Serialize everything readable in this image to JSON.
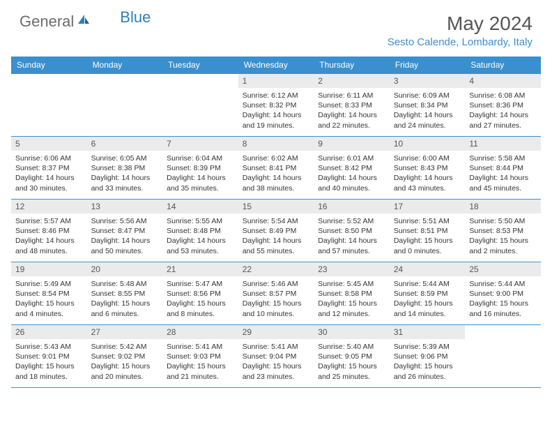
{
  "logo": {
    "general": "General",
    "blue": "Blue"
  },
  "header": {
    "month_title": "May 2024",
    "location": "Sesto Calende, Lombardy, Italy"
  },
  "colors": {
    "header_bg": "#3a8fce",
    "header_text": "#ffffff",
    "border": "#3a8fce",
    "daynum_bg": "#ebebeb",
    "body_text": "#333333",
    "title_text": "#555555",
    "logo_gray": "#6b6b6b",
    "logo_blue": "#2a7fbf"
  },
  "weekdays": [
    "Sunday",
    "Monday",
    "Tuesday",
    "Wednesday",
    "Thursday",
    "Friday",
    "Saturday"
  ],
  "weeks": [
    [
      {
        "n": "",
        "sr": "",
        "ss": "",
        "dl": ""
      },
      {
        "n": "",
        "sr": "",
        "ss": "",
        "dl": ""
      },
      {
        "n": "",
        "sr": "",
        "ss": "",
        "dl": ""
      },
      {
        "n": "1",
        "sr": "6:12 AM",
        "ss": "8:32 PM",
        "dl": "14 hours and 19 minutes."
      },
      {
        "n": "2",
        "sr": "6:11 AM",
        "ss": "8:33 PM",
        "dl": "14 hours and 22 minutes."
      },
      {
        "n": "3",
        "sr": "6:09 AM",
        "ss": "8:34 PM",
        "dl": "14 hours and 24 minutes."
      },
      {
        "n": "4",
        "sr": "6:08 AM",
        "ss": "8:36 PM",
        "dl": "14 hours and 27 minutes."
      }
    ],
    [
      {
        "n": "5",
        "sr": "6:06 AM",
        "ss": "8:37 PM",
        "dl": "14 hours and 30 minutes."
      },
      {
        "n": "6",
        "sr": "6:05 AM",
        "ss": "8:38 PM",
        "dl": "14 hours and 33 minutes."
      },
      {
        "n": "7",
        "sr": "6:04 AM",
        "ss": "8:39 PM",
        "dl": "14 hours and 35 minutes."
      },
      {
        "n": "8",
        "sr": "6:02 AM",
        "ss": "8:41 PM",
        "dl": "14 hours and 38 minutes."
      },
      {
        "n": "9",
        "sr": "6:01 AM",
        "ss": "8:42 PM",
        "dl": "14 hours and 40 minutes."
      },
      {
        "n": "10",
        "sr": "6:00 AM",
        "ss": "8:43 PM",
        "dl": "14 hours and 43 minutes."
      },
      {
        "n": "11",
        "sr": "5:58 AM",
        "ss": "8:44 PM",
        "dl": "14 hours and 45 minutes."
      }
    ],
    [
      {
        "n": "12",
        "sr": "5:57 AM",
        "ss": "8:46 PM",
        "dl": "14 hours and 48 minutes."
      },
      {
        "n": "13",
        "sr": "5:56 AM",
        "ss": "8:47 PM",
        "dl": "14 hours and 50 minutes."
      },
      {
        "n": "14",
        "sr": "5:55 AM",
        "ss": "8:48 PM",
        "dl": "14 hours and 53 minutes."
      },
      {
        "n": "15",
        "sr": "5:54 AM",
        "ss": "8:49 PM",
        "dl": "14 hours and 55 minutes."
      },
      {
        "n": "16",
        "sr": "5:52 AM",
        "ss": "8:50 PM",
        "dl": "14 hours and 57 minutes."
      },
      {
        "n": "17",
        "sr": "5:51 AM",
        "ss": "8:51 PM",
        "dl": "15 hours and 0 minutes."
      },
      {
        "n": "18",
        "sr": "5:50 AM",
        "ss": "8:53 PM",
        "dl": "15 hours and 2 minutes."
      }
    ],
    [
      {
        "n": "19",
        "sr": "5:49 AM",
        "ss": "8:54 PM",
        "dl": "15 hours and 4 minutes."
      },
      {
        "n": "20",
        "sr": "5:48 AM",
        "ss": "8:55 PM",
        "dl": "15 hours and 6 minutes."
      },
      {
        "n": "21",
        "sr": "5:47 AM",
        "ss": "8:56 PM",
        "dl": "15 hours and 8 minutes."
      },
      {
        "n": "22",
        "sr": "5:46 AM",
        "ss": "8:57 PM",
        "dl": "15 hours and 10 minutes."
      },
      {
        "n": "23",
        "sr": "5:45 AM",
        "ss": "8:58 PM",
        "dl": "15 hours and 12 minutes."
      },
      {
        "n": "24",
        "sr": "5:44 AM",
        "ss": "8:59 PM",
        "dl": "15 hours and 14 minutes."
      },
      {
        "n": "25",
        "sr": "5:44 AM",
        "ss": "9:00 PM",
        "dl": "15 hours and 16 minutes."
      }
    ],
    [
      {
        "n": "26",
        "sr": "5:43 AM",
        "ss": "9:01 PM",
        "dl": "15 hours and 18 minutes."
      },
      {
        "n": "27",
        "sr": "5:42 AM",
        "ss": "9:02 PM",
        "dl": "15 hours and 20 minutes."
      },
      {
        "n": "28",
        "sr": "5:41 AM",
        "ss": "9:03 PM",
        "dl": "15 hours and 21 minutes."
      },
      {
        "n": "29",
        "sr": "5:41 AM",
        "ss": "9:04 PM",
        "dl": "15 hours and 23 minutes."
      },
      {
        "n": "30",
        "sr": "5:40 AM",
        "ss": "9:05 PM",
        "dl": "15 hours and 25 minutes."
      },
      {
        "n": "31",
        "sr": "5:39 AM",
        "ss": "9:06 PM",
        "dl": "15 hours and 26 minutes."
      },
      {
        "n": "",
        "sr": "",
        "ss": "",
        "dl": ""
      }
    ]
  ],
  "labels": {
    "sunrise": "Sunrise: ",
    "sunset": "Sunset: ",
    "daylight": "Daylight: "
  }
}
